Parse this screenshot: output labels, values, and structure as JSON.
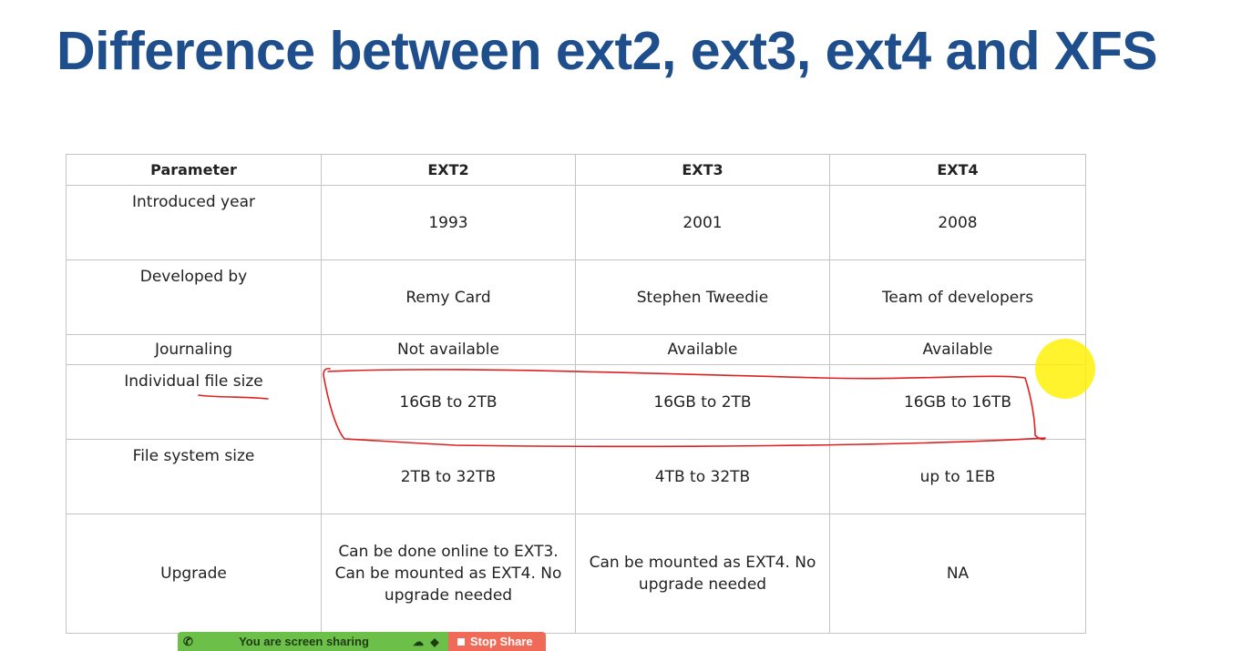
{
  "slide": {
    "title": "Difference between ext2, ext3, ext4 and XFS"
  },
  "table": {
    "headers": [
      "Parameter",
      "EXT2",
      "EXT3",
      "EXT4"
    ],
    "rows": [
      [
        "Introduced year",
        "1993",
        "2001",
        "2008"
      ],
      [
        "Developed by",
        "Remy Card",
        "Stephen Tweedie",
        "Team of developers"
      ],
      [
        "Journaling",
        "Not available",
        "Available",
        "Available"
      ],
      [
        "Individual file size",
        "16GB to 2TB",
        "16GB to 2TB",
        "16GB to 16TB"
      ],
      [
        "File system size",
        "2TB to 32TB",
        "4TB to 32TB",
        "up to 1EB"
      ],
      [
        "Upgrade",
        "Can be done online to EXT3. Can be mounted as EXT4. No upgrade needed",
        "Can be mounted as EXT4. No upgrade needed",
        "NA"
      ]
    ]
  },
  "annotations": {
    "ink_color": "#e02020",
    "pointer_color": "#fff000"
  },
  "share_bar": {
    "status": "You are screen sharing",
    "stop_label": "Stop Share",
    "icons": [
      "phone-icon",
      "cloud-icon",
      "shield-icon",
      "stop-icon"
    ]
  }
}
